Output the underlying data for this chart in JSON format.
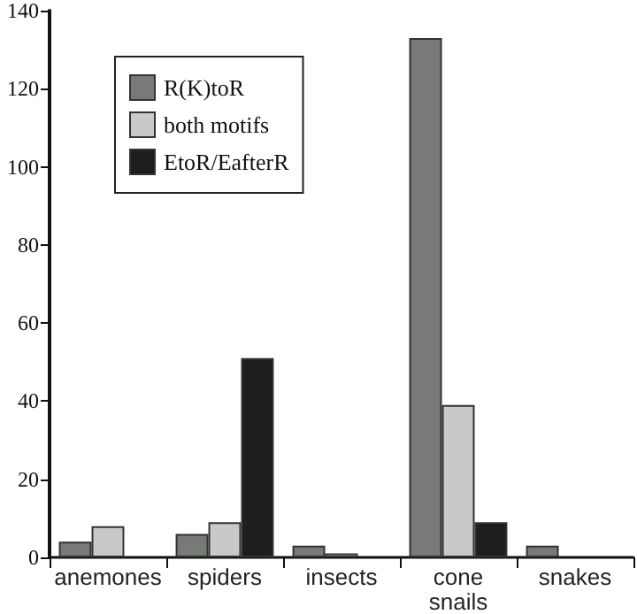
{
  "chart_data": {
    "type": "bar",
    "categories": [
      "anemones",
      "spiders",
      "insects",
      "cone snails",
      "snakes"
    ],
    "series": [
      {
        "name": "R(K)toR",
        "color": "#777a77",
        "values": [
          4,
          6,
          3,
          133,
          3
        ]
      },
      {
        "name": "both motifs",
        "color": "#c8cac8",
        "values": [
          8,
          9,
          1,
          39,
          0
        ]
      },
      {
        "name": "EtoR/EafterR",
        "color": "#1e1e1e",
        "values": [
          0,
          51,
          0,
          9,
          0
        ]
      }
    ],
    "ylim": [
      0,
      140
    ],
    "yticks": [
      0,
      20,
      40,
      60,
      80,
      100,
      120,
      140
    ],
    "grid": false,
    "legend": "top left"
  }
}
